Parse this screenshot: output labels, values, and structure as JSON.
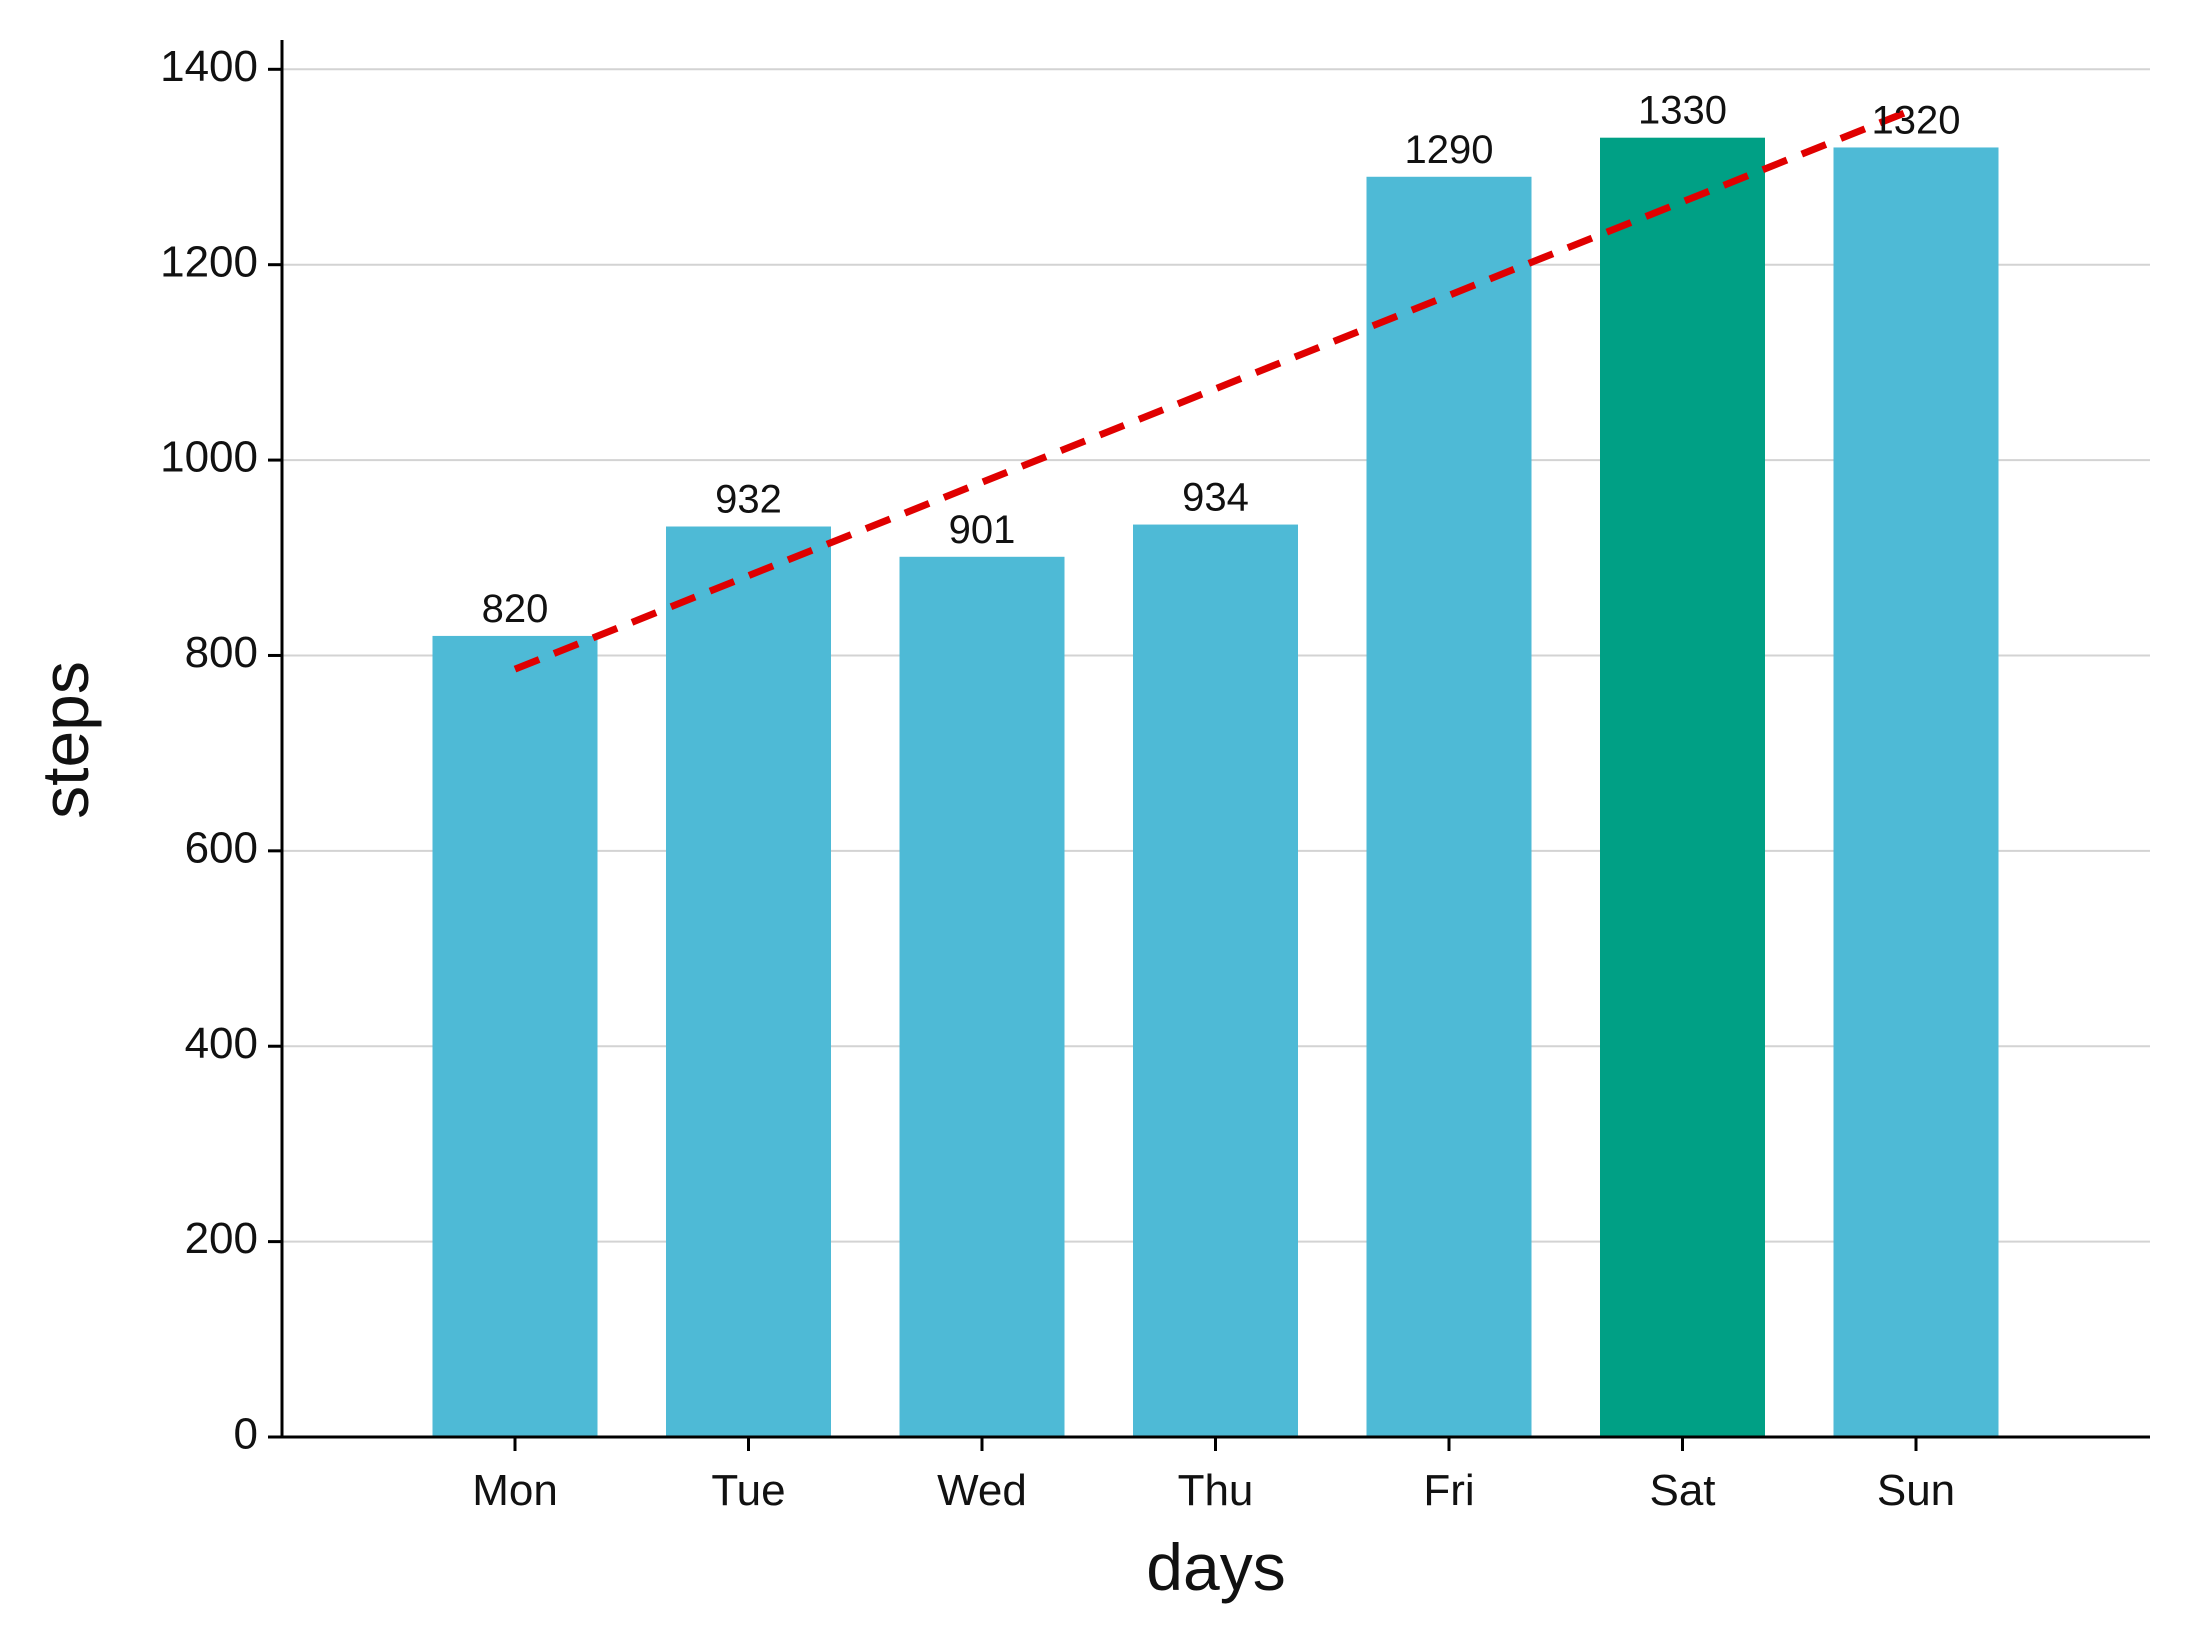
{
  "chart_data": {
    "type": "bar",
    "title": "",
    "xlabel": "days",
    "ylabel": "steps",
    "categories": [
      "Mon",
      "Tue",
      "Wed",
      "Thu",
      "Fri",
      "Sat",
      "Sun"
    ],
    "series": [
      {
        "values": [
          820,
          932,
          901,
          934,
          1290,
          1330,
          1320
        ],
        "data_labels": [
          "820",
          "932",
          "901",
          "934",
          "1290",
          "1330",
          "1320"
        ]
      }
    ],
    "ylim": [
      0,
      1430
    ],
    "yticks": [
      0,
      200,
      400,
      600,
      800,
      1000,
      1200,
      1400
    ],
    "ytick_labels": [
      "0",
      "200",
      "400",
      "600",
      "800",
      "1000",
      "1200",
      "1400"
    ],
    "grid": {
      "y": true,
      "x": false
    },
    "legend": "none",
    "highlight": {
      "category": "Sat",
      "color": "#00A085"
    },
    "trendline": {
      "style": "dashed",
      "color": "#E00000",
      "x_start": "Mon",
      "y_start": 786,
      "x_end": "Sun",
      "y_end": 1360
    },
    "colors": {
      "bar": "#4EBAD6",
      "highlight": "#00A085",
      "trend": "#E00000",
      "grid": "#D3D3D3",
      "axis": "#000000",
      "text": "#111111"
    }
  }
}
